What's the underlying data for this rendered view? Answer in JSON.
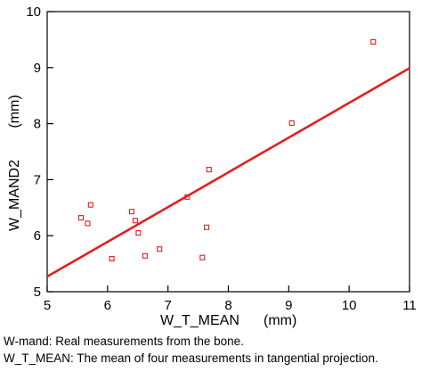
{
  "chart_data": {
    "type": "scatter",
    "title": "",
    "xlabel": "W_T_MEAN",
    "xunit": "(mm)",
    "ylabel": "W_MAND2",
    "yunit": "(mm)",
    "xlim": [
      5,
      11
    ],
    "ylim": [
      5,
      10
    ],
    "xticks": [
      "5",
      "6",
      "7",
      "8",
      "9",
      "10",
      "11"
    ],
    "yticks": [
      "5",
      "6",
      "7",
      "8",
      "9",
      "10"
    ],
    "points": [
      {
        "x": 5.56,
        "y": 6.32
      },
      {
        "x": 5.67,
        "y": 6.22
      },
      {
        "x": 5.72,
        "y": 6.55
      },
      {
        "x": 6.07,
        "y": 5.59
      },
      {
        "x": 6.4,
        "y": 6.43
      },
      {
        "x": 6.46,
        "y": 6.27
      },
      {
        "x": 6.51,
        "y": 6.05
      },
      {
        "x": 6.62,
        "y": 5.64
      },
      {
        "x": 6.86,
        "y": 5.76
      },
      {
        "x": 7.32,
        "y": 6.69
      },
      {
        "x": 7.57,
        "y": 5.61
      },
      {
        "x": 7.64,
        "y": 6.15
      },
      {
        "x": 7.68,
        "y": 7.18
      },
      {
        "x": 9.05,
        "y": 8.01
      },
      {
        "x": 10.4,
        "y": 9.46
      }
    ],
    "fit_line": {
      "x": [
        5,
        11
      ],
      "y": [
        5.27,
        8.99
      ]
    },
    "grid": false,
    "colors": {
      "points": "#e02020",
      "line": "#e02020"
    }
  },
  "caption": {
    "line1": "W-mand: Real measurements from the bone.",
    "line2": "W_T_MEAN: The mean of four measurements in tangential projection."
  }
}
